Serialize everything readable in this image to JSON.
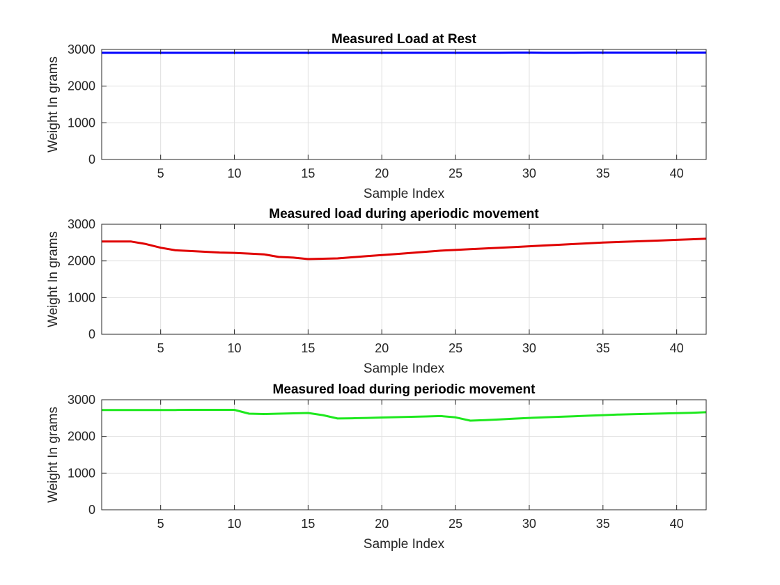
{
  "chart_data": [
    {
      "type": "line",
      "title": "Measured Load at Rest",
      "xlabel": "Sample Index",
      "ylabel": "Weight In grams",
      "xlim": [
        1,
        42
      ],
      "ylim": [
        0,
        3000
      ],
      "xticks": [
        5,
        10,
        15,
        20,
        25,
        30,
        35,
        40
      ],
      "yticks": [
        0,
        1000,
        2000,
        3000
      ],
      "grid": true,
      "series": [
        {
          "color": "#0000ff",
          "x": [
            1,
            2,
            3,
            4,
            5,
            6,
            7,
            8,
            9,
            10,
            11,
            12,
            13,
            14,
            15,
            16,
            17,
            18,
            19,
            20,
            21,
            22,
            23,
            24,
            25,
            26,
            27,
            28,
            29,
            30,
            31,
            32,
            33,
            34,
            35,
            36,
            37,
            38,
            39,
            40,
            41,
            42
          ],
          "y": [
            2910,
            2910,
            2910,
            2910,
            2910,
            2910,
            2910,
            2910,
            2910,
            2910,
            2910,
            2910,
            2910,
            2910,
            2910,
            2910,
            2910,
            2910,
            2910,
            2910,
            2910,
            2910,
            2910,
            2910,
            2910,
            2910,
            2910,
            2910,
            2915,
            2915,
            2910,
            2910,
            2910,
            2915,
            2915,
            2915,
            2915,
            2915,
            2915,
            2915,
            2915,
            2915
          ]
        }
      ]
    },
    {
      "type": "line",
      "title": "Measured load during aperiodic movement",
      "xlabel": "Sample Index",
      "ylabel": "Weight In grams",
      "xlim": [
        1,
        42
      ],
      "ylim": [
        0,
        3000
      ],
      "xticks": [
        5,
        10,
        15,
        20,
        25,
        30,
        35,
        40
      ],
      "yticks": [
        0,
        1000,
        2000,
        3000
      ],
      "grid": true,
      "series": [
        {
          "color": "#e00000",
          "x": [
            1,
            2,
            3,
            4,
            5,
            6,
            7,
            8,
            9,
            10,
            11,
            12,
            13,
            14,
            15,
            16,
            17,
            18,
            19,
            20,
            21,
            22,
            23,
            24,
            25,
            26,
            27,
            28,
            29,
            30,
            31,
            32,
            33,
            34,
            35,
            36,
            37,
            38,
            39,
            40,
            41,
            42
          ],
          "y": [
            2530,
            2530,
            2530,
            2460,
            2360,
            2290,
            2270,
            2250,
            2230,
            2220,
            2200,
            2180,
            2110,
            2090,
            2050,
            2060,
            2070,
            2100,
            2130,
            2160,
            2190,
            2220,
            2250,
            2280,
            2300,
            2320,
            2340,
            2360,
            2380,
            2400,
            2420,
            2440,
            2460,
            2480,
            2500,
            2515,
            2530,
            2545,
            2560,
            2575,
            2590,
            2605
          ]
        }
      ]
    },
    {
      "type": "line",
      "title": "Measured load during periodic movement",
      "xlabel": "Sample Index",
      "ylabel": "Weight In grams",
      "xlim": [
        1,
        42
      ],
      "ylim": [
        0,
        3000
      ],
      "xticks": [
        5,
        10,
        15,
        20,
        25,
        30,
        35,
        40
      ],
      "yticks": [
        0,
        1000,
        2000,
        3000
      ],
      "grid": true,
      "series": [
        {
          "color": "#1ee81e",
          "x": [
            1,
            2,
            3,
            4,
            5,
            6,
            7,
            8,
            9,
            10,
            11,
            12,
            13,
            14,
            15,
            16,
            17,
            18,
            19,
            20,
            21,
            22,
            23,
            24,
            25,
            26,
            27,
            28,
            29,
            30,
            31,
            32,
            33,
            34,
            35,
            36,
            37,
            38,
            39,
            40,
            41,
            42
          ],
          "y": [
            2720,
            2720,
            2720,
            2720,
            2720,
            2720,
            2725,
            2725,
            2725,
            2725,
            2620,
            2610,
            2620,
            2630,
            2640,
            2580,
            2490,
            2495,
            2505,
            2515,
            2525,
            2535,
            2545,
            2555,
            2520,
            2430,
            2445,
            2465,
            2485,
            2505,
            2520,
            2535,
            2550,
            2565,
            2580,
            2595,
            2605,
            2615,
            2625,
            2635,
            2645,
            2660
          ]
        }
      ]
    }
  ]
}
